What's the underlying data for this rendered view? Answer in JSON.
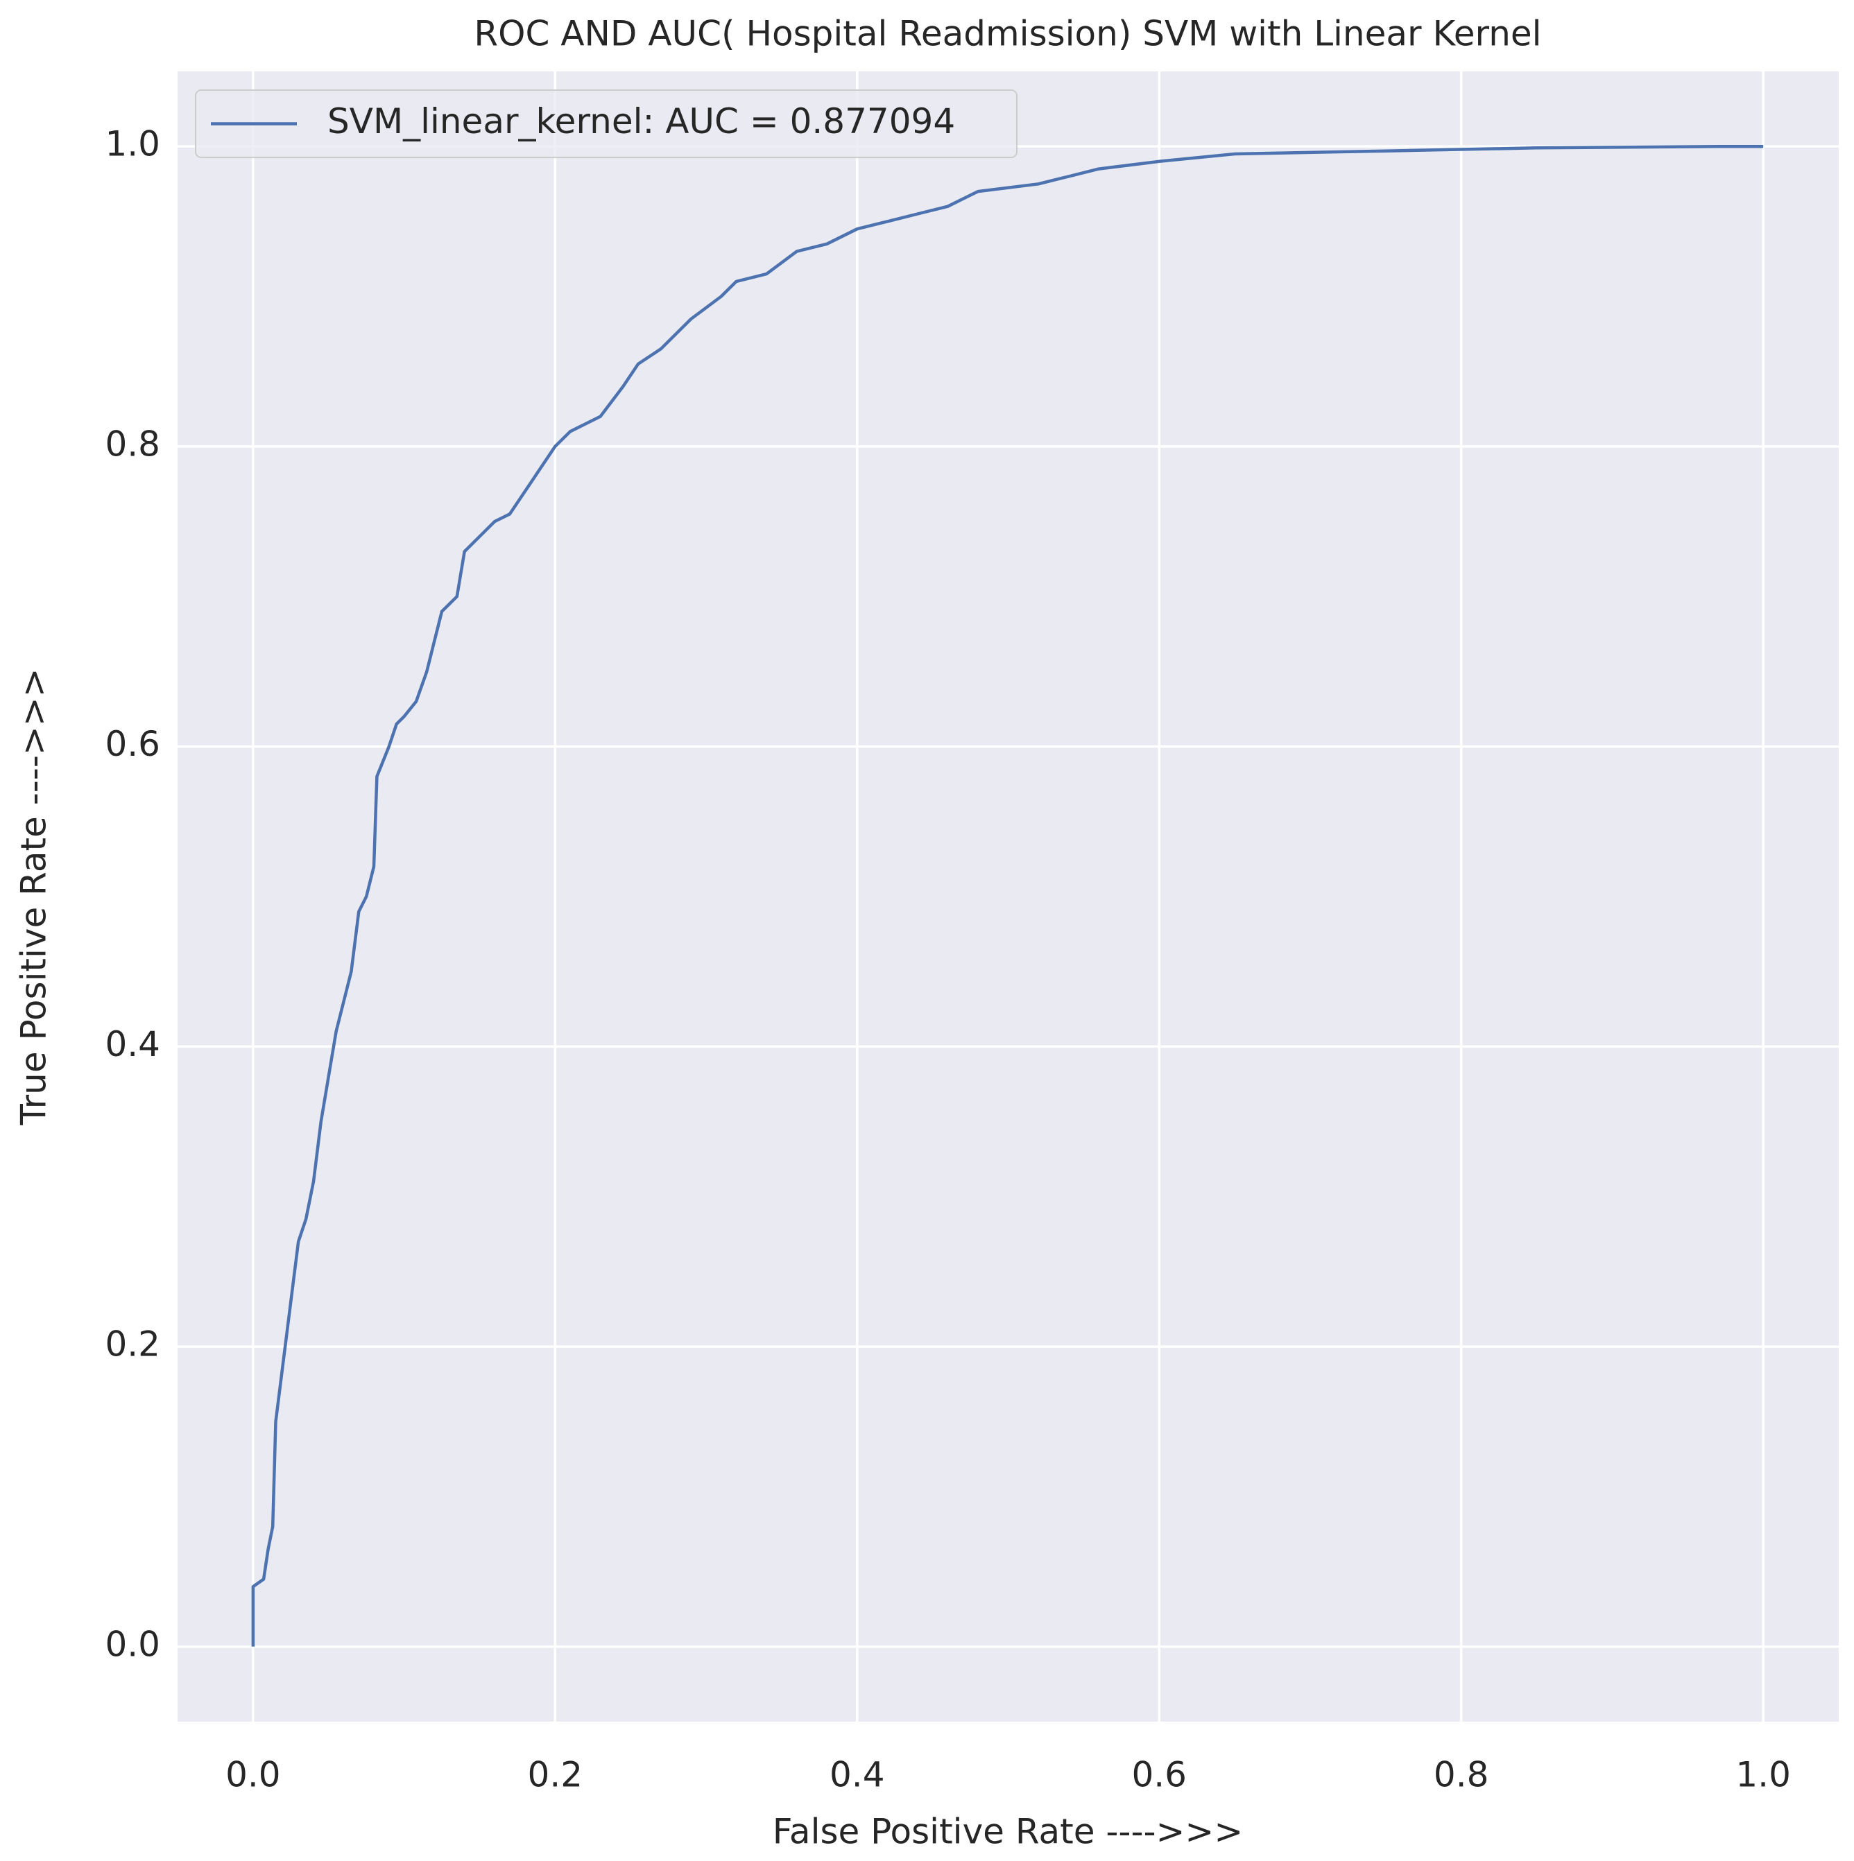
{
  "chart_data": {
    "type": "line",
    "title": "ROC AND AUC( Hospital Readmission) SVM with Linear Kernel",
    "x_label": "False Positive Rate ---->>>",
    "y_label": "True Positive Rate ---->>>",
    "x": [
      0,
      0,
      0.007,
      0.01,
      0.013,
      0.015,
      0.02,
      0.025,
      0.03,
      0.035,
      0.04,
      0.045,
      0.05,
      0.055,
      0.06,
      0.065,
      0.07,
      0.075,
      0.08,
      0.082,
      0.09,
      0.095,
      0.1,
      0.108,
      0.115,
      0.12,
      0.125,
      0.135,
      0.14,
      0.15,
      0.16,
      0.17,
      0.18,
      0.19,
      0.2,
      0.21,
      0.23,
      0.245,
      0.255,
      0.27,
      0.29,
      0.31,
      0.32,
      0.34,
      0.36,
      0.38,
      0.4,
      0.42,
      0.44,
      0.46,
      0.48,
      0.52,
      0.54,
      0.56,
      0.6,
      0.65,
      0.75,
      0.85,
      0.97,
      1.0
    ],
    "series": [
      {
        "name": "SVM_linear_kernel: AUC = 0.877094",
        "color": "#4c72b0",
        "values": [
          0,
          0.04,
          0.045,
          0.065,
          0.08,
          0.15,
          0.19,
          0.23,
          0.27,
          0.285,
          0.31,
          0.35,
          0.38,
          0.41,
          0.43,
          0.45,
          0.49,
          0.5,
          0.52,
          0.58,
          0.6,
          0.615,
          0.62,
          0.63,
          0.65,
          0.67,
          0.69,
          0.7,
          0.73,
          0.74,
          0.75,
          0.755,
          0.77,
          0.785,
          0.8,
          0.81,
          0.82,
          0.84,
          0.855,
          0.865,
          0.885,
          0.9,
          0.91,
          0.915,
          0.93,
          0.935,
          0.945,
          0.95,
          0.955,
          0.96,
          0.97,
          0.975,
          0.98,
          0.985,
          0.99,
          0.995,
          0.997,
          0.999,
          1.0,
          1.0
        ]
      }
    ],
    "xlim": [
      -0.05,
      1.05
    ],
    "ylim": [
      -0.05,
      1.05
    ],
    "xticks": [
      {
        "value": 0,
        "label": "0.0"
      },
      0.2,
      0.4,
      0.6,
      0.8,
      {
        "value": 1,
        "label": "1.0"
      }
    ],
    "yticks": [
      {
        "value": 0,
        "label": "0.0"
      },
      0.2,
      0.4,
      0.6,
      0.8,
      {
        "value": 1,
        "label": "1.0"
      }
    ],
    "grid": true,
    "legend": "upper left"
  }
}
